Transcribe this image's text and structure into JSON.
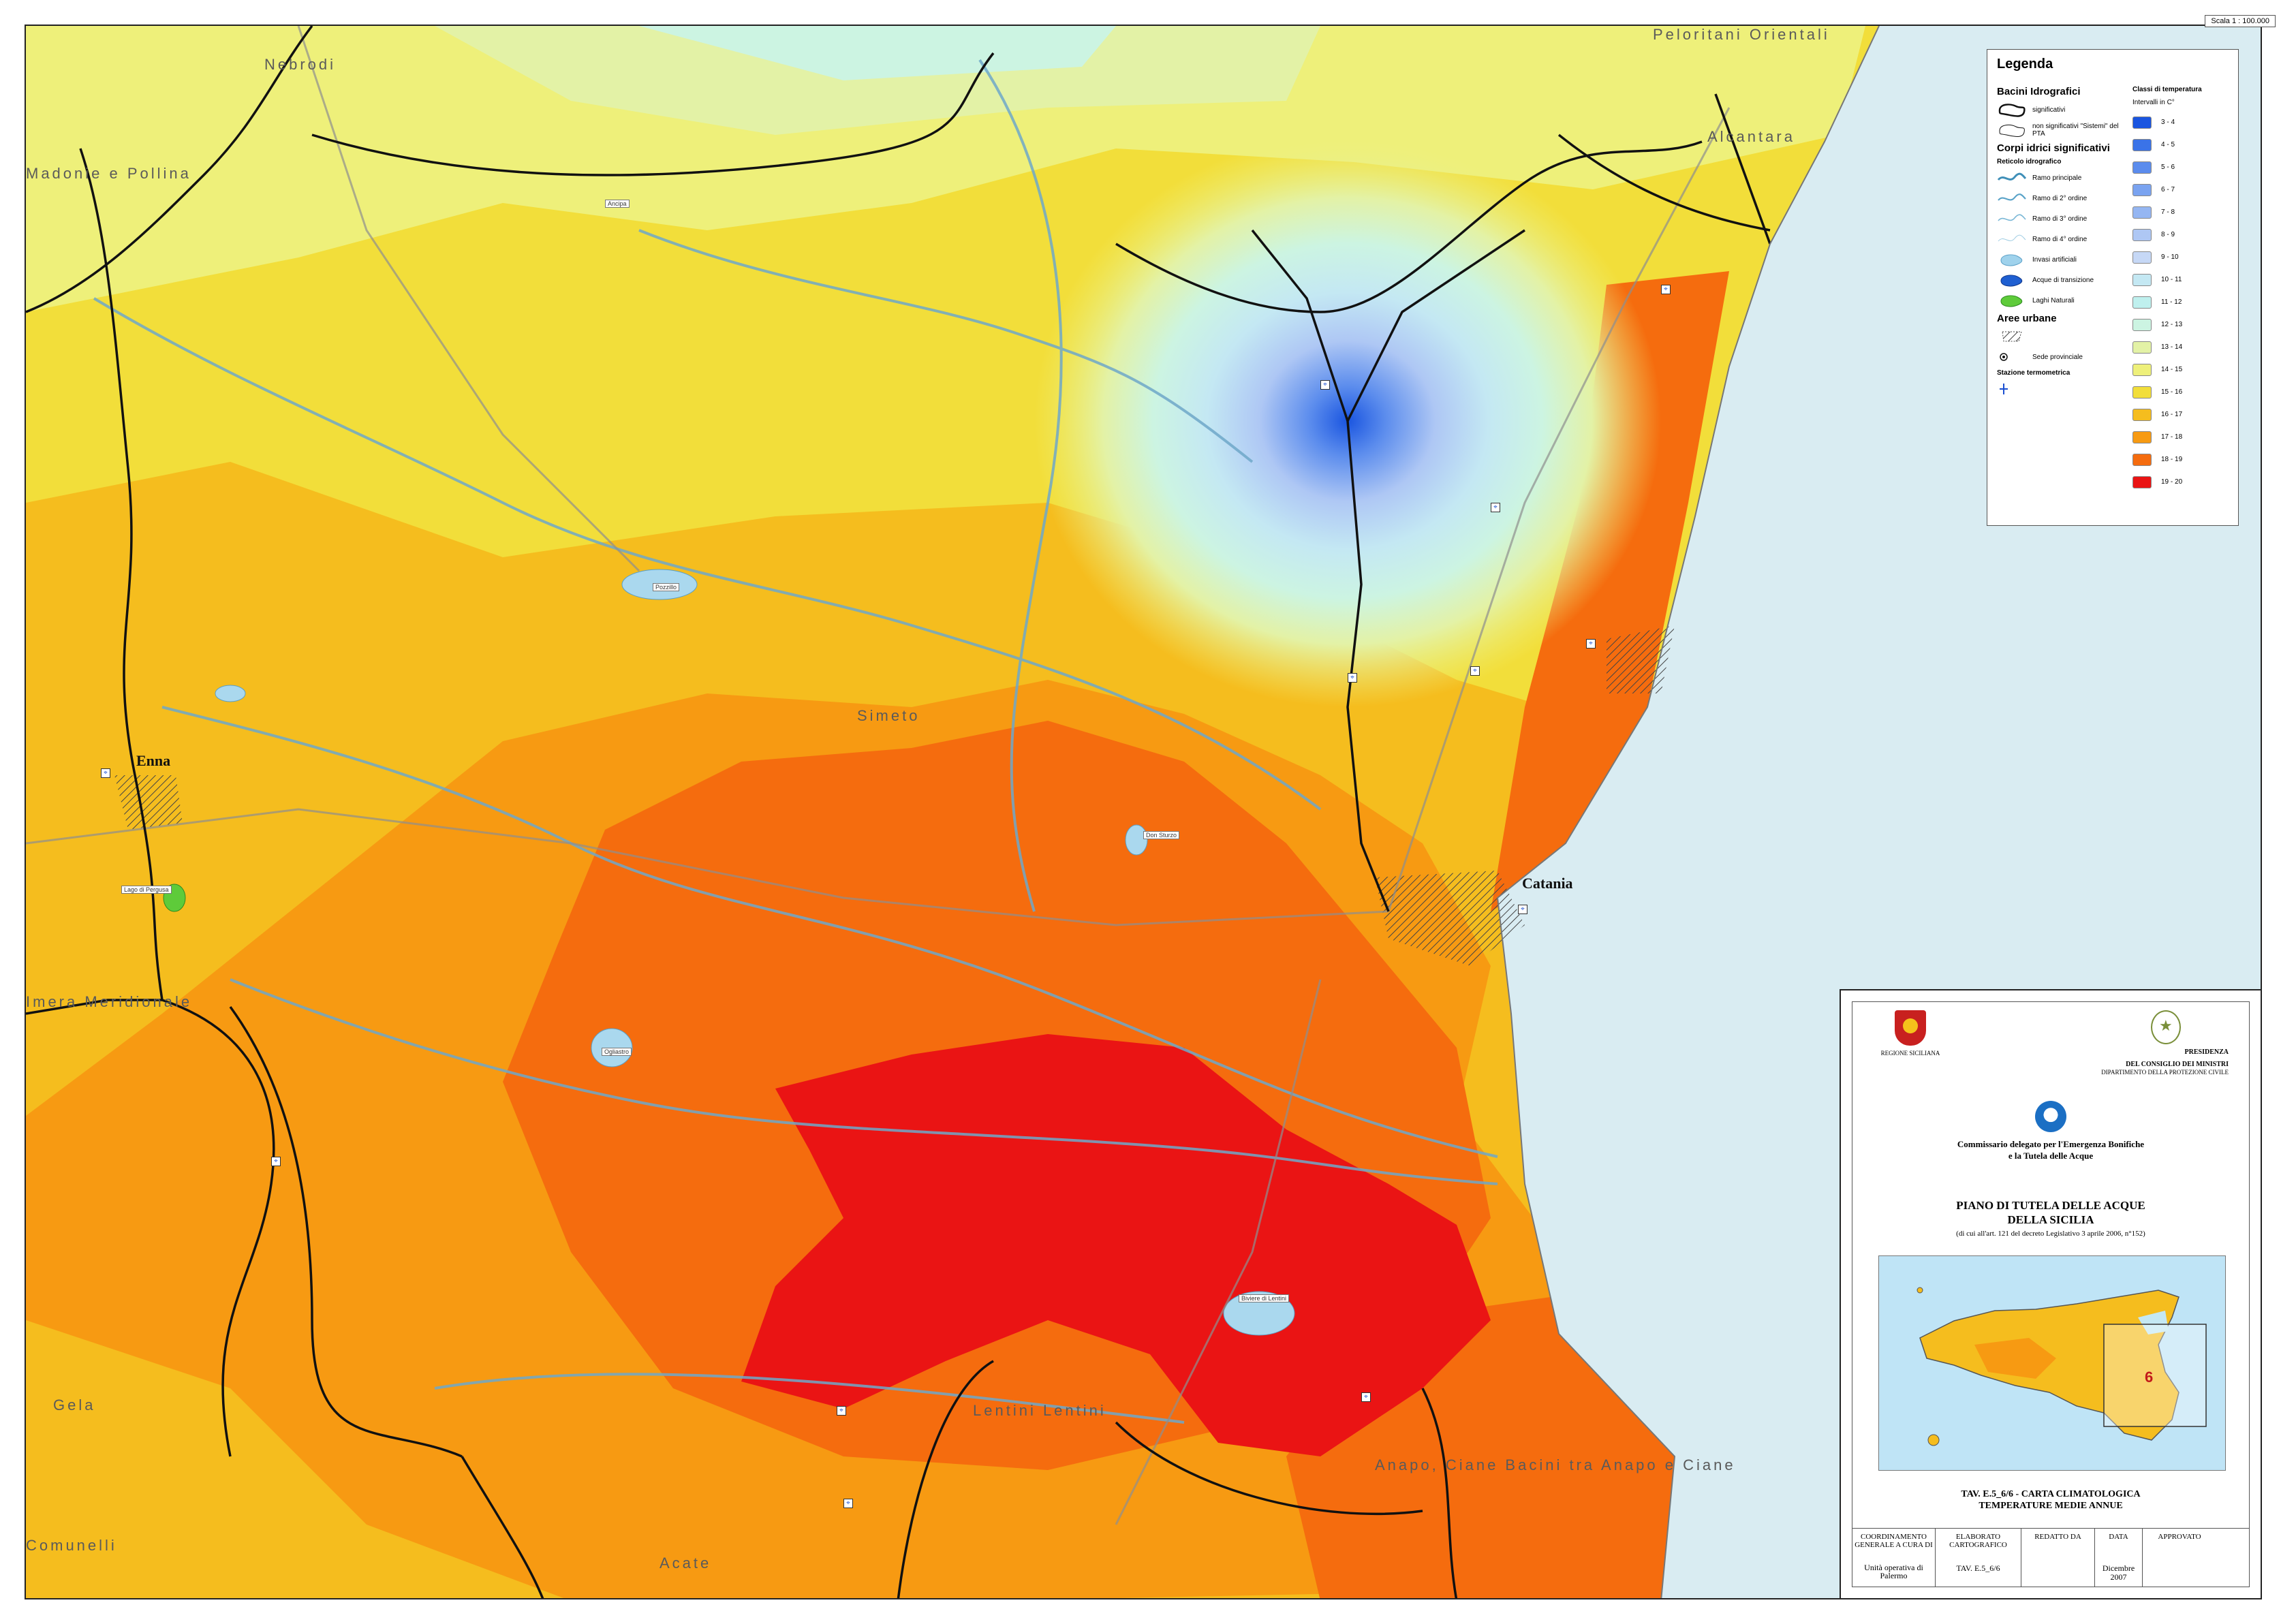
{
  "map": {
    "scale": "Scala 1 : 100.000",
    "place_labels": [
      "Peloritani Orientali",
      "Nebrodi",
      "Alcantara",
      "Madonie e Pollina",
      "Simeto",
      "Imera Meridionale",
      "Gela",
      "Lentini Lentini",
      "Anapo, Ciane Bacini tra Anapo e Ciane",
      "Acate",
      "Comunelli"
    ],
    "cities": [
      "Enna",
      "Catania"
    ],
    "lake_labels": [
      "Ancipa",
      "Pozzillo",
      "Ogliastro",
      "Lago di Pergusa",
      "Biviere di Lentini",
      "Don Sturzo"
    ],
    "colors": {
      "sea": "#d9ecf2",
      "frame": "#222222",
      "boundary": "#111111",
      "river": "#6fa8c9",
      "road": "#8f8f8f"
    }
  },
  "legend": {
    "title": "Legenda",
    "bacini_title": "Bacini Idrografici",
    "bacini_items": [
      {
        "label": "significativi",
        "icon": "basin-significant-icon"
      },
      {
        "label": "non significativi \"Sistemi\" del PTA",
        "icon": "basin-non-significant-icon"
      }
    ],
    "corpi_title": "Corpi idrici significativi",
    "reticolo_title": "Reticolo idrografico",
    "reticolo_items": [
      {
        "label": "Ramo principale",
        "icon": "river-main-icon"
      },
      {
        "label": "Ramo di 2° ordine",
        "icon": "river-2nd-order-icon"
      },
      {
        "label": "Ramo di 3° ordine",
        "icon": "river-3rd-order-icon"
      },
      {
        "label": "Ramo di 4° ordine",
        "icon": "river-4th-order-icon"
      },
      {
        "label": "Invasi artificiali",
        "icon": "reservoir-icon"
      },
      {
        "label": "Acque di transizione",
        "icon": "transition-water-icon"
      },
      {
        "label": "Laghi Naturali",
        "icon": "natural-lake-icon"
      }
    ],
    "urban_title": "Aree urbane",
    "provincial_label": "Sede provinciale",
    "station_title": "Stazione termometrica",
    "temp_title": "Classi di temperatura",
    "temp_subtitle": "Intervalli in C°",
    "temp_classes": [
      {
        "label": "3 - 4",
        "color": "#1a55e0"
      },
      {
        "label": "4 - 5",
        "color": "#3a73e8"
      },
      {
        "label": "5 - 6",
        "color": "#5b8ced"
      },
      {
        "label": "6 - 7",
        "color": "#7aa3f0"
      },
      {
        "label": "7 - 8",
        "color": "#95b6f2"
      },
      {
        "label": "8 - 9",
        "color": "#aec7f4"
      },
      {
        "label": "9 - 10",
        "color": "#c6d8f6"
      },
      {
        "label": "10 - 11",
        "color": "#c4e8f3"
      },
      {
        "label": "11 - 12",
        "color": "#bff0ee"
      },
      {
        "label": "12 - 13",
        "color": "#ccf4e2"
      },
      {
        "label": "13 - 14",
        "color": "#e3f2a6"
      },
      {
        "label": "14 - 15",
        "color": "#eef07a"
      },
      {
        "label": "15 - 16",
        "color": "#f2de3a"
      },
      {
        "label": "16 - 17",
        "color": "#f5bd1e"
      },
      {
        "label": "17 - 18",
        "color": "#f79a12"
      },
      {
        "label": "18 - 19",
        "color": "#f56c0e"
      },
      {
        "label": "19 - 20",
        "color": "#ea1414"
      }
    ]
  },
  "title_block": {
    "region_caption": "REGIONE SICILIANA",
    "presidenza_line1": "PRESIDENZA",
    "presidenza_line2": "DEL CONSIGLIO DEI MINISTRI",
    "presidenza_line3": "DIPARTIMENTO DELLA PROTEZIONE CIVILE",
    "commissario_line1": "Commissario delegato per l'Emergenza Bonifiche",
    "commissario_line2": "e la Tutela delle Acque",
    "piano_line1": "PIANO DI TUTELA DELLE ACQUE",
    "piano_line2": "DELLA SICILIA",
    "piano_sub": "(di cui all'art. 121 del decreto Legislativo 3 aprile 2006, n°152)",
    "tav_line1": "TAV. E.5_6/6 - CARTA CLIMATOLOGICA",
    "tav_line2": "TEMPERATURE MEDIE ANNUE",
    "footer": {
      "coordinamento": "COORDINAMENTO GENERALE A CURA DI",
      "elaborato": "ELABORATO CARTOGRAFICO",
      "redatto": "REDATTO DA",
      "data": "DATA",
      "approvato": "APPROVATO",
      "unit": "Unità operativa di Palermo",
      "tav_code": "TAV. E.5_6/6",
      "date_value": "Dicembre 2007"
    },
    "inset_number": "6"
  }
}
